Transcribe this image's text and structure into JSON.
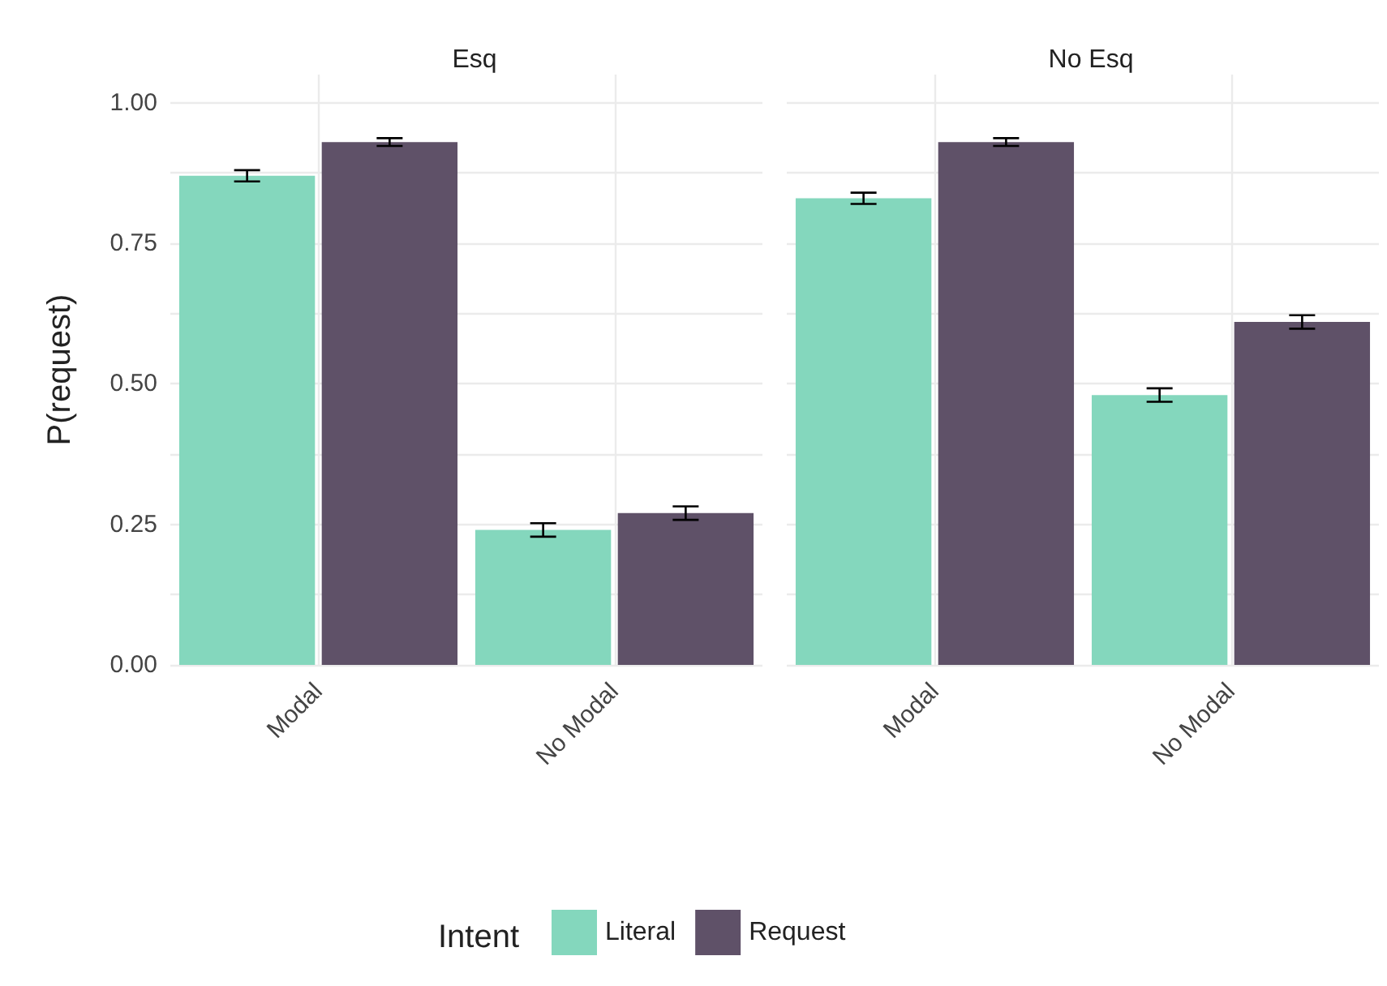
{
  "chart_data": [
    {
      "type": "bar",
      "title": "Esq",
      "ylabel": "P(request)",
      "categories": [
        "Modal",
        "No Modal"
      ],
      "series": [
        {
          "name": "Literal",
          "color": "#84d7bd",
          "values": [
            0.87,
            0.24
          ],
          "errors": [
            0.01,
            0.012
          ]
        },
        {
          "name": "Request",
          "color": "#5f5168",
          "values": [
            0.93,
            0.27
          ],
          "errors": [
            0.007,
            0.012
          ]
        }
      ],
      "ylim": [
        0,
        1.05
      ],
      "yticks": [
        {
          "value": 0,
          "label": "0.00"
        },
        {
          "value": 0.125,
          "label": null
        },
        {
          "value": 0.25,
          "label": "0.25"
        },
        {
          "value": 0.375,
          "label": null
        },
        {
          "value": 0.5,
          "label": "0.50"
        },
        {
          "value": 0.625,
          "label": null
        },
        {
          "value": 0.75,
          "label": "0.75"
        },
        {
          "value": 0.875,
          "label": null
        },
        {
          "value": 1,
          "label": "1.00"
        }
      ],
      "grid": true,
      "legend": "bottom",
      "legend_title": "Intent"
    },
    {
      "type": "bar",
      "title": "No Esq",
      "categories": [
        "Modal",
        "No Modal"
      ],
      "series": [
        {
          "color": "#84d7bd",
          "values": [
            0.83,
            0.48
          ],
          "errors": [
            0.01,
            0.012
          ]
        },
        {
          "color": "#5f5168",
          "values": [
            0.93,
            0.61
          ],
          "errors": [
            0.007,
            0.012
          ]
        }
      ],
      "ylim": [
        0,
        1.05
      ],
      "yticks": [
        0,
        0.125,
        0.25,
        0.375,
        0.5,
        0.625,
        0.75,
        0.875,
        1
      ],
      "grid": true,
      "tick_labels": "x"
    }
  ]
}
